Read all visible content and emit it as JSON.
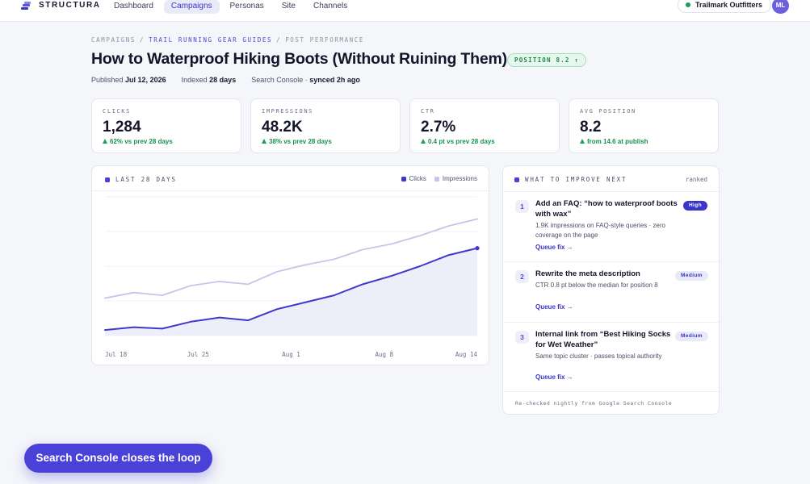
{
  "brand": {
    "name": "STRUCTURA"
  },
  "nav": {
    "items": [
      "Dashboard",
      "Campaigns",
      "Personas",
      "Site",
      "Channels"
    ],
    "active": "Campaigns"
  },
  "account": {
    "name": "Trailmark Outfitters",
    "initials": "ML"
  },
  "breadcrumb": {
    "root": "CAMPAIGNS",
    "campaign": "TRAIL RUNNING GEAR GUIDES",
    "current": "POST PERFORMANCE",
    "separator": "/"
  },
  "post": {
    "title": "How to Waterproof Hiking Boots (Without Ruining Them)",
    "position_badge": "POSITION 8.2 ↑",
    "published_label": "Published",
    "published_date": "Jul 12, 2026",
    "indexed_label": "Indexed",
    "indexed_value": "28 days",
    "source_label": "Search Console ·",
    "source_sync": "synced 2h ago"
  },
  "stats": [
    {
      "label": "CLICKS",
      "value": "1,284",
      "delta": "62% vs prev 28 days"
    },
    {
      "label": "IMPRESSIONS",
      "value": "48.2K",
      "delta": "38% vs prev 28 days"
    },
    {
      "label": "CTR",
      "value": "2.7%",
      "delta": "0.4 pt vs prev 28 days"
    },
    {
      "label": "AVG POSITION",
      "value": "8.2",
      "delta": "from 14.6 at publish"
    }
  ],
  "chart": {
    "heading": "LAST 28 DAYS"
  },
  "chart_data": {
    "type": "area",
    "x_labels": [
      "Jul 18",
      "Jul 25",
      "Aug 1",
      "Aug 8",
      "Aug 14"
    ],
    "series": [
      {
        "name": "Clicks",
        "color": "#3f38c8",
        "values": [
          4,
          6,
          5,
          10,
          13,
          11,
          19,
          24,
          29,
          37,
          43,
          50,
          58,
          63
        ]
      },
      {
        "name": "Impressions",
        "color": "#c3c6ec",
        "values": [
          27,
          31,
          29,
          36,
          39,
          37,
          46,
          51,
          55,
          62,
          66,
          72,
          79,
          84
        ]
      }
    ],
    "ylim": [
      0,
      100
    ],
    "grid": true,
    "legend": "top-right"
  },
  "improve": {
    "heading": "WHAT TO IMPROVE NEXT",
    "ranked_label": "ranked",
    "items": [
      {
        "rank": "1",
        "title": "Add an FAQ: “how to waterproof boots with wax”",
        "desc": "1.9K impressions on FAQ-style queries · zero coverage on the page",
        "priority": "High",
        "action": "Queue fix →"
      },
      {
        "rank": "2",
        "title": "Rewrite the meta description",
        "desc": "CTR 0.8 pt below the median for position 8",
        "priority": "Medium",
        "action": "Queue fix →"
      },
      {
        "rank": "3",
        "title": "Internal link from “Best Hiking Socks for Wet Weather”",
        "desc": "Same topic cluster · passes topical authority",
        "priority": "Medium",
        "action": "Queue fix →"
      }
    ],
    "footnote": "Re-checked nightly from Google Search Console"
  },
  "cta": {
    "label": "Search Console closes the loop"
  },
  "colors": {
    "accent": "#4a42d8",
    "positive": "#18a058",
    "background": "#f5f6fa"
  }
}
